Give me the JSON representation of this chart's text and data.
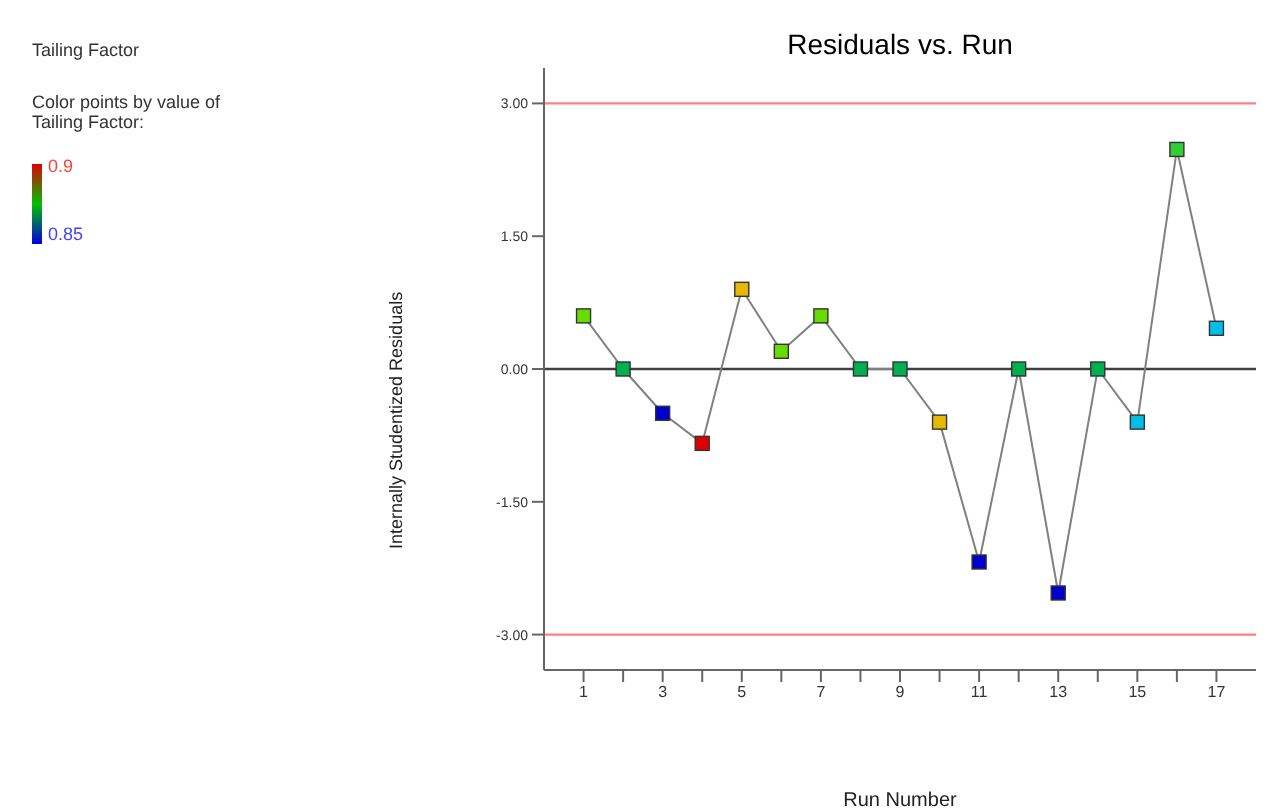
{
  "chart_data": {
    "type": "line",
    "title": "Residuals vs. Run",
    "subtitle": "Tailing Factor",
    "clabel": "Color points by value of Tailing Factor:",
    "clim": [
      0.85,
      0.9
    ],
    "cticks": [
      0.85,
      0.9
    ],
    "xlabel": "Run Number",
    "ylabel": "Internally Studentized Residuals",
    "x": [
      1,
      2,
      3,
      4,
      5,
      6,
      7,
      8,
      9,
      10,
      11,
      12,
      13,
      14,
      15,
      16,
      17
    ],
    "series": [
      {
        "color": "#808080",
        "values": [
          0.6,
          0,
          -0.5,
          -0.84,
          0.9,
          0.2,
          0.6,
          0,
          0,
          -0.6,
          -2.18,
          0,
          -2.53,
          0,
          -0.6,
          2.48,
          0.46
        ],
        "colors": [
          "#66dd00",
          "#00b050",
          "#0000cc",
          "#dd0000",
          "#e6b800",
          "#66dd00",
          "#66dd00",
          "#00b050",
          "#00b050",
          "#e6b800",
          "#0000cc",
          "#00b050",
          "#0000cc",
          "#00b050",
          "#00bfe6",
          "#33cc33",
          "#00bfe6"
        ]
      }
    ],
    "xlim": [
      0,
      18
    ],
    "xticks": [
      1,
      {
        "value": 2,
        "label": null
      },
      3,
      {
        "value": 4,
        "label": null
      },
      5,
      {
        "value": 6,
        "label": null
      },
      7,
      {
        "value": 8,
        "label": null
      },
      9,
      {
        "value": 10,
        "label": null
      },
      11,
      {
        "value": 12,
        "label": null
      },
      13,
      {
        "value": 14,
        "label": null
      },
      15,
      {
        "value": 16,
        "label": null
      },
      17
    ],
    "ylim": [
      -3.4,
      3.4
    ],
    "yticks": [
      {
        "value": -3,
        "label": "-3.00"
      },
      {
        "value": -1.5,
        "label": "-1.50"
      },
      {
        "value": 0,
        "label": "0.00"
      },
      {
        "value": 1.5,
        "label": "1.50"
      },
      {
        "value": 3,
        "label": "3.00"
      }
    ],
    "ref_lines": [
      {
        "axis": "y",
        "value": 3,
        "color": "#ff8080"
      },
      {
        "axis": "y",
        "value": -3,
        "color": "#ff8080"
      },
      {
        "axis": "y",
        "value": 0,
        "color": "#404040"
      }
    ],
    "grid": false,
    "marker": "square",
    "line_style": "solid"
  }
}
